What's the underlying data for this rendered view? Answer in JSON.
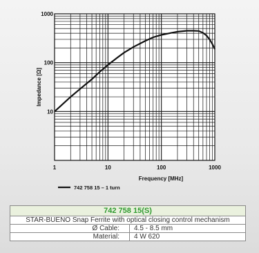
{
  "chart_data": {
    "type": "line",
    "xscale": "log",
    "yscale": "log",
    "xlim": [
      1,
      1000
    ],
    "ylim": [
      1,
      1000
    ],
    "xticks": [
      1,
      10,
      100,
      1000
    ],
    "yticks": [
      10,
      100,
      1000
    ],
    "xtick_labels": [
      "1",
      "10",
      "100",
      "1000"
    ],
    "ytick_labels": [
      "10",
      "100",
      "1000"
    ],
    "xlabel": "Frequency [MHz]",
    "ylabel": "Impedance [Ω]",
    "grid": true,
    "legend_position": "bottom-left",
    "series": [
      {
        "name": "742 758 15 – 1 turn",
        "color": "#111111",
        "x": [
          1,
          1.5,
          2,
          3,
          5,
          7,
          10,
          15,
          20,
          30,
          50,
          70,
          100,
          150,
          200,
          300,
          400,
          500,
          600,
          700,
          800,
          900,
          1000
        ],
        "y": [
          10,
          15,
          20,
          29,
          46,
          65,
          90,
          127,
          160,
          210,
          280,
          330,
          370,
          405,
          430,
          450,
          450,
          445,
          410,
          360,
          300,
          240,
          190
        ]
      }
    ]
  },
  "product": {
    "part_number": "742 758 15(S)",
    "description": "STAR-BUENO Snap Ferrite with optical closing control mechanism",
    "specs": [
      {
        "label": "Ø Cable:",
        "value": "4.5 - 8.5 mm"
      },
      {
        "label": "Material:",
        "value": "4 W 620"
      }
    ]
  }
}
